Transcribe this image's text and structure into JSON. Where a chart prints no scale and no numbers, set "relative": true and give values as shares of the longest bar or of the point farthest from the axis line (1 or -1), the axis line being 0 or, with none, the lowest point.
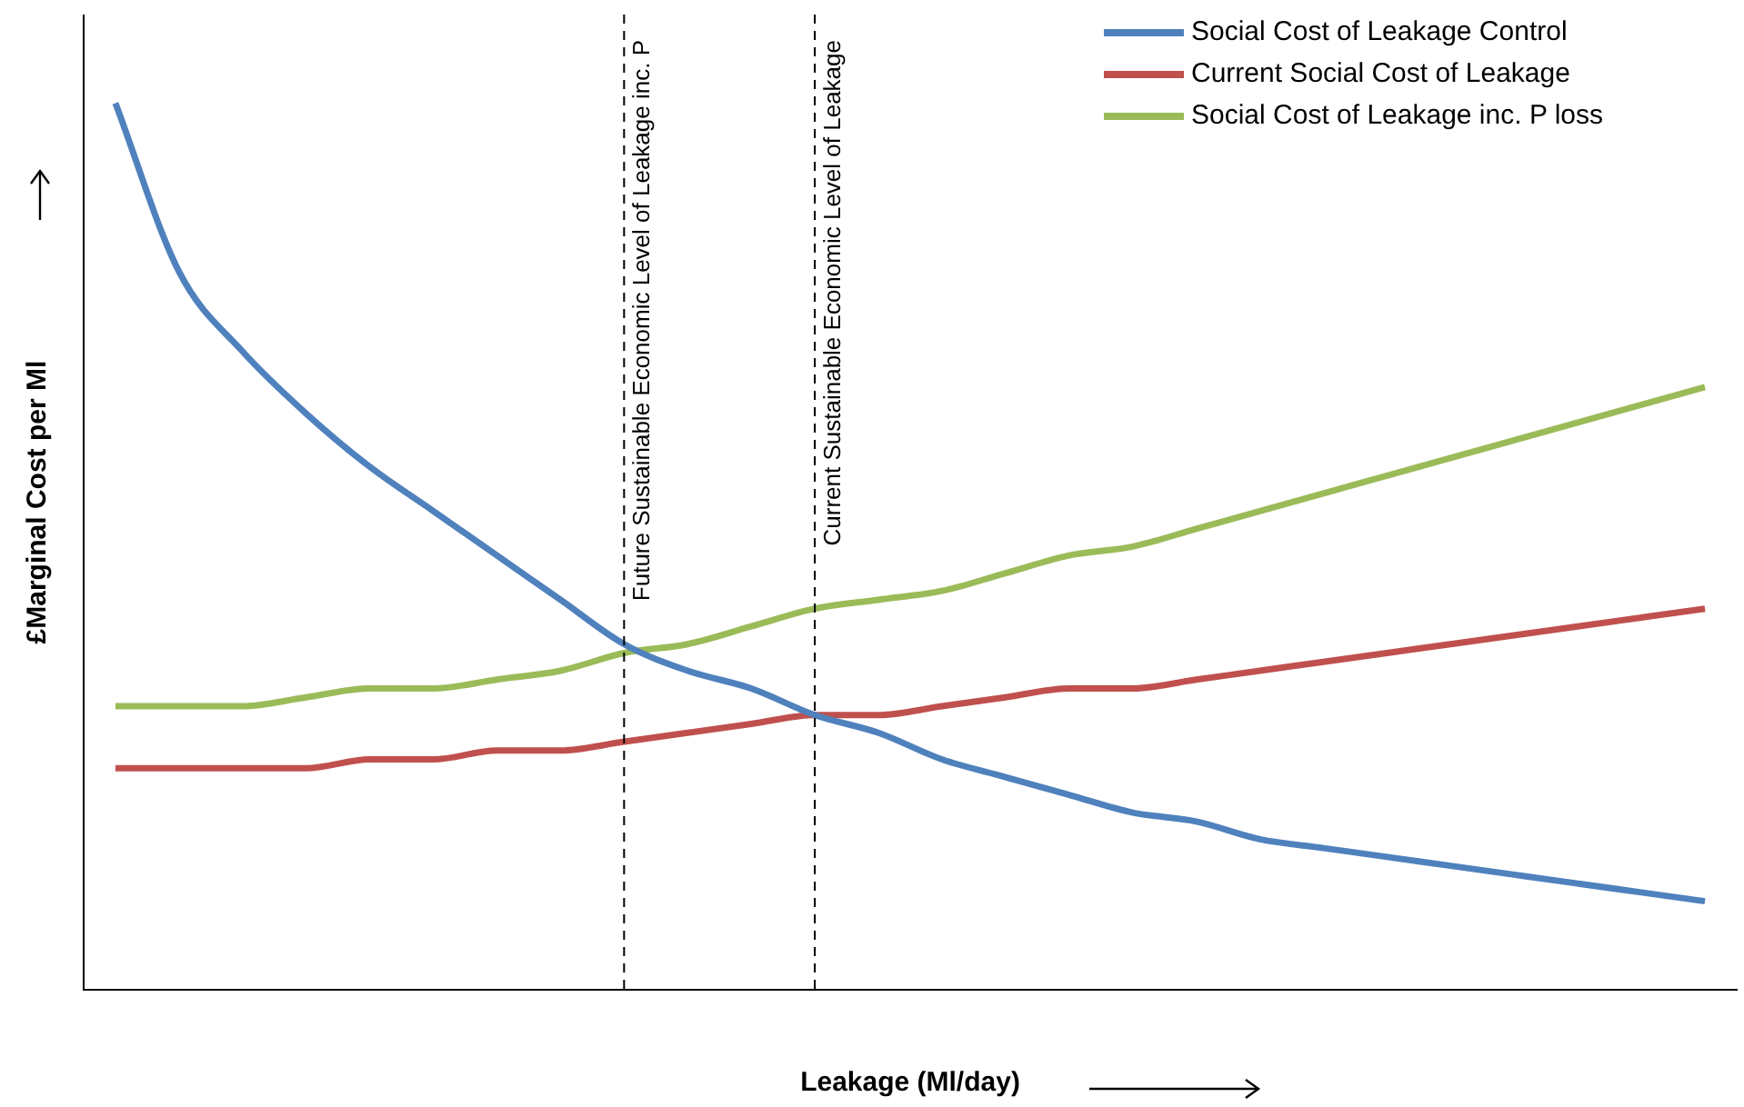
{
  "chart_data": {
    "type": "line",
    "relative": true,
    "xlabel": "Leakage (Ml/day)",
    "ylabel": "£Marginal Cost per Ml",
    "categories": [
      null,
      null,
      null,
      null,
      null,
      null,
      null,
      null,
      null,
      null,
      null,
      null,
      null,
      null,
      null,
      null,
      null,
      null,
      null,
      null,
      null,
      null,
      null,
      null,
      null,
      null
    ],
    "series": [
      {
        "name": "Social Cost of Leakage Control",
        "color": "#4f81bd",
        "values": [
          1.0,
          0.81,
          0.72,
          0.65,
          0.59,
          0.54,
          0.49,
          0.44,
          0.39,
          0.36,
          0.34,
          0.31,
          0.29,
          0.26,
          0.24,
          0.22,
          0.2,
          0.19,
          0.17,
          0.16,
          0.15,
          0.14,
          0.13,
          0.12,
          0.11,
          0.1
        ]
      },
      {
        "name": "Current Social Cost of Leakage",
        "color": "#c0504d",
        "values": [
          0.25,
          0.25,
          0.25,
          0.25,
          0.26,
          0.26,
          0.27,
          0.27,
          0.28,
          0.29,
          0.3,
          0.31,
          0.31,
          0.32,
          0.33,
          0.34,
          0.34,
          0.35,
          0.36,
          0.37,
          0.38,
          0.39,
          0.4,
          0.41,
          0.42,
          0.43
        ]
      },
      {
        "name": "Social Cost of Leakage inc. P loss",
        "color": "#9bbb59",
        "values": [
          0.32,
          0.32,
          0.32,
          0.33,
          0.34,
          0.34,
          0.35,
          0.36,
          0.38,
          0.39,
          0.41,
          0.43,
          0.44,
          0.45,
          0.47,
          0.49,
          0.5,
          0.52,
          0.54,
          0.56,
          0.58,
          0.6,
          0.62,
          0.64,
          0.66,
          0.68
        ]
      }
    ],
    "annotations": [
      "Future Sustainable Economic Level of Leakage inc. P",
      "Current Sustainable Economic Level of Leakage"
    ],
    "legend": "top right",
    "marker": "none",
    "line_style": "solid",
    "grid": false
  }
}
